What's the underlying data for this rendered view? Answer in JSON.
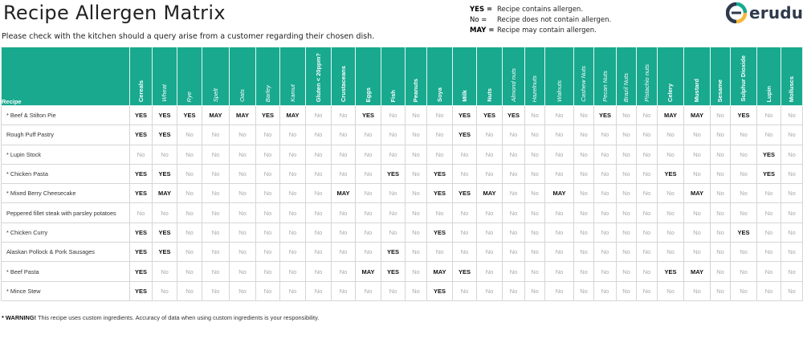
{
  "header": {
    "title": "Recipe Allergen Matrix",
    "subtitle": "Please check with the kitchen should a query arise from a customer regarding their chosen dish."
  },
  "legend": [
    {
      "key": "YES =",
      "desc": "Recipe contains allergen."
    },
    {
      "key": "No =",
      "desc": "Recipe does not contain allergen."
    },
    {
      "key": "MAY =",
      "desc": "Recipe may contain allergen."
    }
  ],
  "logo": {
    "text": "erudus",
    "colors": [
      "#18a98f",
      "#f5b73b",
      "#2e3a4c"
    ]
  },
  "table": {
    "recipe_header": "Recipe",
    "allergens": [
      {
        "label": "Cereals",
        "italic": false
      },
      {
        "label": "Wheat",
        "italic": true
      },
      {
        "label": "Rye",
        "italic": true
      },
      {
        "label": "Spelt",
        "italic": true
      },
      {
        "label": "Oats",
        "italic": true
      },
      {
        "label": "Barley",
        "italic": true
      },
      {
        "label": "Kamut",
        "italic": true
      },
      {
        "label": "Gluten < 20ppm?",
        "italic": false
      },
      {
        "label": "Crustaceans",
        "italic": false
      },
      {
        "label": "Eggs",
        "italic": false
      },
      {
        "label": "Fish",
        "italic": false
      },
      {
        "label": "Peanuts",
        "italic": false
      },
      {
        "label": "Soya",
        "italic": false
      },
      {
        "label": "Milk",
        "italic": false
      },
      {
        "label": "Nuts",
        "italic": false
      },
      {
        "label": "Almond nuts",
        "italic": true
      },
      {
        "label": "Hazelnuts",
        "italic": true
      },
      {
        "label": "Walnuts",
        "italic": true
      },
      {
        "label": "Cashew Nuts",
        "italic": true
      },
      {
        "label": "Pecan Nuts",
        "italic": true
      },
      {
        "label": "Brazil Nuts",
        "italic": true
      },
      {
        "label": "Pistachio nuts",
        "italic": true
      },
      {
        "label": "Celery",
        "italic": false
      },
      {
        "label": "Mustard",
        "italic": false
      },
      {
        "label": "Sesame",
        "italic": false
      },
      {
        "label": "Sulphur Dioxide",
        "italic": false
      },
      {
        "label": "Lupin",
        "italic": false
      },
      {
        "label": "Molluscs",
        "italic": false
      }
    ],
    "rows": [
      {
        "recipe": "* Beef & Stilton Pie",
        "values": [
          "YES",
          "YES",
          "YES",
          "MAY",
          "MAY",
          "YES",
          "MAY",
          "No",
          "No",
          "YES",
          "No",
          "No",
          "No",
          "YES",
          "YES",
          "YES",
          "No",
          "No",
          "No",
          "YES",
          "No",
          "No",
          "MAY",
          "MAY",
          "No",
          "YES",
          "No",
          "No"
        ]
      },
      {
        "recipe": "Rough Puff Pastry",
        "values": [
          "YES",
          "YES",
          "No",
          "No",
          "No",
          "No",
          "No",
          "No",
          "No",
          "No",
          "No",
          "No",
          "No",
          "YES",
          "No",
          "No",
          "No",
          "No",
          "No",
          "No",
          "No",
          "No",
          "No",
          "No",
          "No",
          "No",
          "No",
          "No"
        ]
      },
      {
        "recipe": "* Lupin Stock",
        "values": [
          "No",
          "No",
          "No",
          "No",
          "No",
          "No",
          "No",
          "No",
          "No",
          "No",
          "No",
          "No",
          "No",
          "No",
          "No",
          "No",
          "No",
          "No",
          "No",
          "No",
          "No",
          "No",
          "No",
          "No",
          "No",
          "No",
          "YES",
          "No"
        ]
      },
      {
        "recipe": "* Chicken Pasta",
        "values": [
          "YES",
          "YES",
          "No",
          "No",
          "No",
          "No",
          "No",
          "No",
          "No",
          "No",
          "YES",
          "No",
          "YES",
          "No",
          "No",
          "No",
          "No",
          "No",
          "No",
          "No",
          "No",
          "No",
          "YES",
          "No",
          "No",
          "No",
          "YES",
          "No"
        ]
      },
      {
        "recipe": "* Mixed Berry Cheesecake",
        "values": [
          "YES",
          "MAY",
          "No",
          "No",
          "No",
          "No",
          "No",
          "No",
          "MAY",
          "No",
          "No",
          "No",
          "YES",
          "YES",
          "MAY",
          "No",
          "No",
          "MAY",
          "No",
          "No",
          "No",
          "No",
          "No",
          "MAY",
          "No",
          "No",
          "No",
          "No"
        ]
      },
      {
        "recipe": "Peppered fillet steak with parsley potatoes",
        "values": [
          "No",
          "No",
          "No",
          "No",
          "No",
          "No",
          "No",
          "No",
          "No",
          "No",
          "No",
          "No",
          "No",
          "No",
          "No",
          "No",
          "No",
          "No",
          "No",
          "No",
          "No",
          "No",
          "No",
          "No",
          "No",
          "No",
          "No",
          "No"
        ]
      },
      {
        "recipe": "* Chicken Curry",
        "values": [
          "YES",
          "YES",
          "No",
          "No",
          "No",
          "No",
          "No",
          "No",
          "No",
          "No",
          "No",
          "No",
          "YES",
          "No",
          "No",
          "No",
          "No",
          "No",
          "No",
          "No",
          "No",
          "No",
          "No",
          "No",
          "No",
          "YES",
          "No",
          "No"
        ]
      },
      {
        "recipe": "Alaskan Pollock & Pork Sausages",
        "values": [
          "YES",
          "YES",
          "No",
          "No",
          "No",
          "No",
          "No",
          "No",
          "No",
          "No",
          "YES",
          "No",
          "No",
          "No",
          "No",
          "No",
          "No",
          "No",
          "No",
          "No",
          "No",
          "No",
          "No",
          "No",
          "No",
          "No",
          "No",
          "No"
        ]
      },
      {
        "recipe": "* Beef Pasta",
        "values": [
          "YES",
          "No",
          "No",
          "No",
          "No",
          "No",
          "No",
          "No",
          "No",
          "MAY",
          "YES",
          "No",
          "MAY",
          "YES",
          "No",
          "No",
          "No",
          "No",
          "No",
          "No",
          "No",
          "No",
          "YES",
          "MAY",
          "No",
          "No",
          "No",
          "No"
        ]
      },
      {
        "recipe": "* Mince Stew",
        "values": [
          "YES",
          "No",
          "No",
          "No",
          "No",
          "No",
          "No",
          "No",
          "No",
          "No",
          "No",
          "No",
          "YES",
          "No",
          "No",
          "No",
          "No",
          "No",
          "No",
          "No",
          "No",
          "No",
          "No",
          "No",
          "No",
          "No",
          "No",
          "No"
        ]
      }
    ]
  },
  "footer": {
    "warning_label": "* WARNING!",
    "warning_text": " This recipe uses custom ingredients. Accuracy of data when using custom ingredients is your responsibility."
  }
}
